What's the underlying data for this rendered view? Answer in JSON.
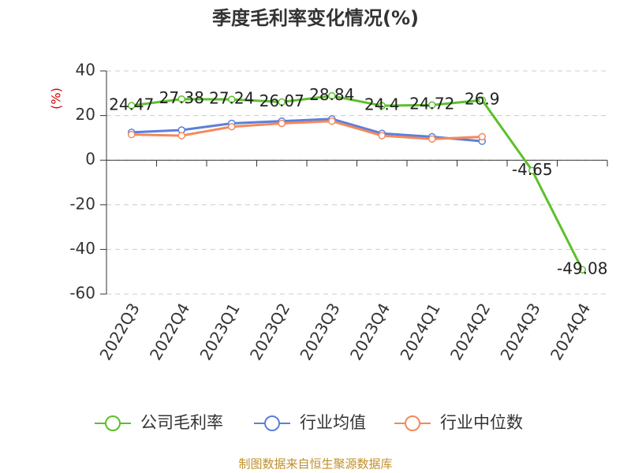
{
  "chart_data": {
    "type": "line",
    "title": "季度毛利率变化情况(%)",
    "y_label": "(%)",
    "categories": [
      "2022Q3",
      "2022Q4",
      "2023Q1",
      "2023Q2",
      "2023Q3",
      "2023Q4",
      "2024Q1",
      "2024Q2",
      "2024Q3",
      "2024Q4"
    ],
    "series": [
      {
        "name": "公司毛利率",
        "color": "#5cc02c",
        "values": [
          24.47,
          27.38,
          27.24,
          26.07,
          28.84,
          24.4,
          24.72,
          26.9,
          -4.65,
          -49.08
        ],
        "labels": true
      },
      {
        "name": "行业均值",
        "color": "#5b7fdc",
        "values": [
          12.5,
          13.5,
          16.5,
          17.5,
          18.5,
          12,
          10.5,
          8.5,
          null,
          null
        ]
      },
      {
        "name": "行业中位数",
        "color": "#f5895a",
        "values": [
          11.5,
          11,
          15,
          16.5,
          17.5,
          11,
          9.5,
          10.5,
          null,
          null
        ]
      }
    ],
    "ylim": [
      -60,
      40
    ],
    "yticks": [
      -60,
      -40,
      -20,
      0,
      20,
      40
    ],
    "grid": true,
    "source": "制图数据来自恒生聚源数据库"
  }
}
